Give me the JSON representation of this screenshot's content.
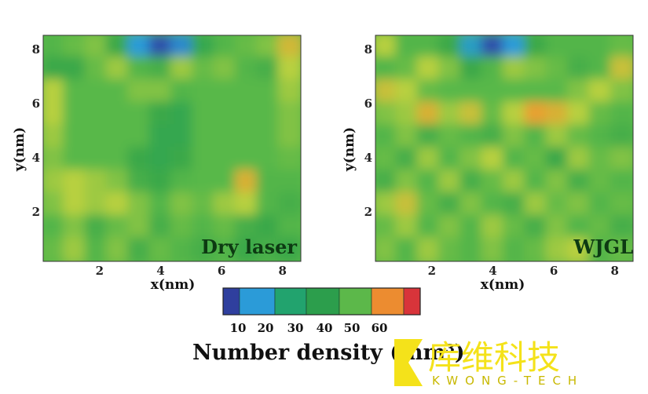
{
  "chart_data": [
    {
      "type": "heatmap",
      "panel_label": "Dry laser",
      "xlabel": "x(nm)",
      "ylabel": "y(nm)",
      "xticks": [
        "2",
        "4",
        "6",
        "8"
      ],
      "yticks": [
        "2",
        "4",
        "6",
        "8"
      ],
      "xlim": [
        0.15,
        8.6
      ],
      "ylim": [
        0.17,
        8.52
      ],
      "grid": false,
      "values": [
        [
          44,
          46,
          48,
          40,
          20,
          12,
          18,
          38,
          44,
          46,
          48,
          55
        ],
        [
          40,
          40,
          46,
          50,
          44,
          42,
          50,
          46,
          48,
          44,
          42,
          52
        ],
        [
          52,
          45,
          45,
          45,
          48,
          48,
          44,
          45,
          45,
          45,
          45,
          50
        ],
        [
          52,
          45,
          45,
          45,
          45,
          40,
          38,
          45,
          45,
          45,
          45,
          48
        ],
        [
          50,
          45,
          45,
          45,
          45,
          38,
          38,
          45,
          45,
          45,
          45,
          48
        ],
        [
          48,
          45,
          45,
          45,
          40,
          38,
          40,
          45,
          45,
          45,
          45,
          46
        ],
        [
          50,
          52,
          50,
          48,
          42,
          40,
          44,
          45,
          45,
          56,
          44,
          44
        ],
        [
          48,
          52,
          50,
          52,
          48,
          44,
          48,
          46,
          50,
          52,
          44,
          42
        ],
        [
          44,
          48,
          42,
          46,
          48,
          42,
          46,
          44,
          46,
          42,
          40,
          44
        ],
        [
          46,
          50,
          44,
          48,
          42,
          46,
          44,
          42,
          44,
          40,
          42,
          40
        ]
      ]
    },
    {
      "type": "heatmap",
      "panel_label": "WJGL",
      "xlabel": "x(nm)",
      "ylabel": "y(nm)",
      "xticks": [
        "2",
        "4",
        "6",
        "8"
      ],
      "yticks": [
        "2",
        "4",
        "6",
        "8"
      ],
      "xlim": [
        0.15,
        8.6
      ],
      "ylim": [
        0.17,
        8.52
      ],
      "grid": false,
      "values": [
        [
          52,
          44,
          44,
          40,
          22,
          12,
          20,
          40,
          44,
          44,
          44,
          46
        ],
        [
          44,
          46,
          52,
          48,
          40,
          44,
          50,
          48,
          46,
          42,
          44,
          54
        ],
        [
          54,
          52,
          46,
          45,
          45,
          45,
          45,
          45,
          45,
          48,
          52,
          48
        ],
        [
          48,
          50,
          56,
          50,
          54,
          46,
          52,
          58,
          56,
          52,
          46,
          44
        ],
        [
          44,
          48,
          42,
          46,
          44,
          42,
          48,
          44,
          50,
          46,
          44,
          42
        ],
        [
          46,
          42,
          50,
          44,
          48,
          52,
          44,
          46,
          40,
          50,
          46,
          48
        ],
        [
          42,
          48,
          44,
          50,
          42,
          46,
          50,
          44,
          48,
          42,
          46,
          44
        ],
        [
          50,
          54,
          46,
          42,
          48,
          44,
          42,
          50,
          46,
          48,
          44,
          46
        ],
        [
          46,
          50,
          44,
          48,
          44,
          50,
          46,
          42,
          48,
          44,
          46,
          42
        ],
        [
          48,
          44,
          50,
          46,
          44,
          48,
          44,
          46,
          50,
          52,
          44,
          46
        ]
      ]
    }
  ],
  "colorbar": {
    "title": "Number density (/nm³)",
    "ticks": [
      "10",
      "20",
      "30",
      "40",
      "50",
      "60"
    ],
    "colors": [
      "#2f3f9e",
      "#2b9bd8",
      "#22a36e",
      "#2c9e4c",
      "#5cb84a",
      "#ec8c30",
      "#d8343a"
    ]
  },
  "logo": {
    "text_cn": "库维科技",
    "text_en": "KWONG-TECH",
    "color": "#f4e21a"
  }
}
